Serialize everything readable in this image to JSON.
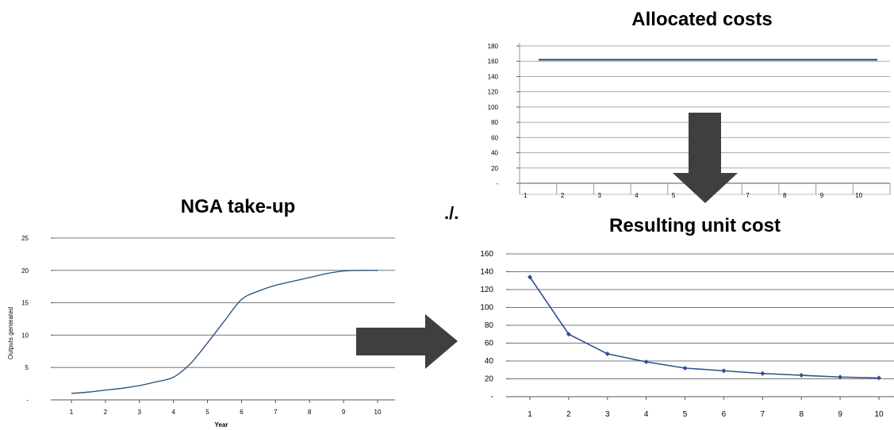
{
  "operator": "./.",
  "chart_data": [
    {
      "id": "take-up",
      "type": "line",
      "title": "NGA take-up",
      "xlabel": "Year",
      "ylabel": "Outputs generated",
      "categories": [
        "1",
        "2",
        "3",
        "4",
        "5",
        "6",
        "7",
        "8",
        "9",
        "10"
      ],
      "x": [
        1,
        1.5,
        2,
        2.5,
        3,
        3.5,
        4,
        4.5,
        5,
        5.5,
        6,
        6.5,
        7,
        7.5,
        8,
        8.5,
        9,
        9.5,
        10
      ],
      "series": [
        {
          "values": [
            1.0,
            1.2,
            1.5,
            1.8,
            2.2,
            2.8,
            3.5,
            5.6,
            8.8,
            12.2,
            15.5,
            16.8,
            17.7,
            18.3,
            18.9,
            19.5,
            19.9,
            20.0,
            20.0
          ]
        }
      ],
      "yticks": [
        "-",
        "5",
        "10",
        "15",
        "20",
        "25"
      ],
      "ylim": [
        0,
        25
      ],
      "grid": true,
      "color": "#1f4e79"
    },
    {
      "id": "allocated",
      "type": "line",
      "title": "Allocated costs",
      "categories": [
        "1",
        "2",
        "3",
        "4",
        "5",
        "6",
        "7",
        "8",
        "9",
        "10"
      ],
      "series": [
        {
          "values": [
            162,
            162,
            162,
            162,
            162,
            162,
            162,
            162,
            162,
            162
          ]
        }
      ],
      "yticks": [
        "-",
        "20",
        "40",
        "60",
        "80",
        "100",
        "120",
        "140",
        "160",
        "180"
      ],
      "ylim": [
        0,
        180
      ],
      "grid": true,
      "color": "#2f4f8f"
    },
    {
      "id": "unit-cost",
      "type": "line",
      "title": "Resulting unit cost",
      "categories": [
        "1",
        "2",
        "3",
        "4",
        "5",
        "6",
        "7",
        "8",
        "9",
        "10"
      ],
      "series": [
        {
          "values": [
            134,
            70,
            48,
            39,
            32,
            29,
            26,
            24,
            22,
            21
          ]
        }
      ],
      "yticks": [
        "-",
        "20",
        "40",
        "60",
        "80",
        "100",
        "120",
        "140",
        "160"
      ],
      "ylim": [
        0,
        160
      ],
      "grid": true,
      "markers": true,
      "color": "#2f4f8f"
    }
  ]
}
